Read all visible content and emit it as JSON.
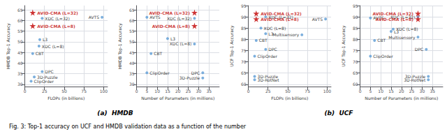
{
  "chart_data": [
    {
      "type": "scatter",
      "xlabel": "FLOPs (in billions)",
      "ylabel": "HMDB Top-1 Accuracy",
      "xlim": [
        0,
        105
      ],
      "ylim": [
        29,
        67
      ],
      "xticks": [
        0,
        25,
        50,
        75,
        100
      ],
      "yticks": [
        30,
        35,
        40,
        45,
        50,
        55,
        60,
        65
      ],
      "grid": true,
      "series": [
        {
          "color": "#c00000",
          "marker": "star",
          "x": [
            10,
            10
          ],
          "values": [
            63.7,
            57.5
          ],
          "labels": [
            "AVID-CMA (L=32)",
            "AVID-CMA (L=8)"
          ]
        },
        {
          "color": "#5b9bd5",
          "marker": "circle",
          "x": [
            98,
            22,
            18,
            19,
            10,
            22,
            12,
            8
          ],
          "values": [
            61.5,
            61.0,
            48.0,
            51.0,
            44.5,
            36.0,
            33.5,
            31.5
          ],
          "labels": [
            "AVTS",
            "XDC (L=32)",
            "XDC (L=8)",
            "L3",
            "CBT",
            "DPC",
            "3D-Puzzle",
            "ClipOrder"
          ]
        }
      ]
    },
    {
      "type": "scatter",
      "xlabel": "Number of Parameters (in millions)",
      "ylabel": "HMDB Top-1 Accuracy",
      "xlim": [
        0,
        40
      ],
      "ylim": [
        29,
        67
      ],
      "xticks": [
        0,
        5,
        10,
        15,
        20,
        25,
        30,
        35
      ],
      "yticks": [
        30,
        35,
        40,
        45,
        50,
        55,
        60,
        65
      ],
      "grid": true,
      "series": [
        {
          "color": "#c00000",
          "marker": "star",
          "x": [
            28,
            28
          ],
          "values": [
            63.7,
            57.5
          ],
          "labels": [
            "AVID-CMA (L=32)",
            "AVID-CMA (L=8)"
          ]
        },
        {
          "color": "#5b9bd5",
          "marker": "circle",
          "x": [
            5,
            28,
            28,
            15,
            7,
            32,
            32,
            5
          ],
          "values": [
            61.5,
            61.0,
            49.0,
            51.5,
            44.5,
            35.5,
            33.0,
            35.5
          ],
          "labels": [
            "AVTS",
            "XDC (L=32)",
            "XDC (L=8)",
            "L3",
            "CBT",
            "DPC",
            "3D-Puzzle",
            "ClipOrder"
          ]
        }
      ]
    },
    {
      "type": "scatter",
      "xlabel": "FLOPs (in billions)",
      "ylabel": "UCF Top-1 Accuracy",
      "xlim": [
        0,
        105
      ],
      "ylim": [
        59,
        95
      ],
      "xticks": [
        0,
        25,
        50,
        75,
        100
      ],
      "yticks": [
        60,
        65,
        70,
        75,
        80,
        85,
        90,
        95
      ],
      "grid": true,
      "series": [
        {
          "color": "#c00000",
          "marker": "star",
          "x": [
            10,
            10
          ],
          "values": [
            91.5,
            89.0
          ],
          "labels": [
            "AVID-CMA (L=32)",
            "AVID-CMA (L=8)"
          ]
        },
        {
          "color": "#5b9bd5",
          "marker": "circle",
          "x": [
            98,
            22,
            16,
            22,
            10,
            68,
            22,
            8,
            8,
            8
          ],
          "values": [
            89.0,
            90.0,
            85.0,
            82.5,
            79.5,
            82.0,
            75.5,
            63.5,
            62.0,
            72.5
          ],
          "labels": [
            "AVTS",
            "XDC (L=32)",
            "XDC (L=8)",
            "L3",
            "CBT",
            "Multisensory",
            "DPC",
            "3D-Puzzle",
            "3D-RotNet",
            "ClipOrder"
          ]
        }
      ]
    },
    {
      "type": "scatter",
      "xlabel": "Number of Parameters (in millions)",
      "ylabel": "UCF Top-1 Accuracy",
      "xlim": [
        0,
        40
      ],
      "ylim": [
        59,
        95
      ],
      "xticks": [
        0,
        5,
        10,
        15,
        20,
        25,
        30,
        35
      ],
      "yticks": [
        60,
        65,
        70,
        75,
        80,
        85,
        90,
        95
      ],
      "grid": true,
      "series": [
        {
          "color": "#c00000",
          "marker": "star",
          "x": [
            28,
            28
          ],
          "values": [
            91.5,
            89.0
          ],
          "labels": [
            "AVID-CMA (L=32)",
            "AVID-CMA (L=8)"
          ]
        },
        {
          "color": "#5b9bd5",
          "marker": "circle",
          "x": [
            5,
            28,
            16,
            15,
            7,
            28,
            32,
            33,
            33,
            5
          ],
          "values": [
            89.5,
            90.0,
            84.5,
            83.5,
            79.5,
            81.0,
            75.5,
            63.5,
            62.0,
            72.5
          ],
          "labels": [
            "AVTS",
            "XDC (L=32)",
            "XDC (L=8)",
            "L3",
            "CBT",
            "Multisensory",
            "DPC",
            "3D-Puzzle",
            "3D-RotNet",
            "ClipOrder"
          ]
        }
      ]
    }
  ],
  "annotations": [
    "(a)  HMDB",
    "(b)  UCF"
  ],
  "caption": "Fig. 3: Top-1 accuracy on UCF and HMDB validation data as a function of the number"
}
